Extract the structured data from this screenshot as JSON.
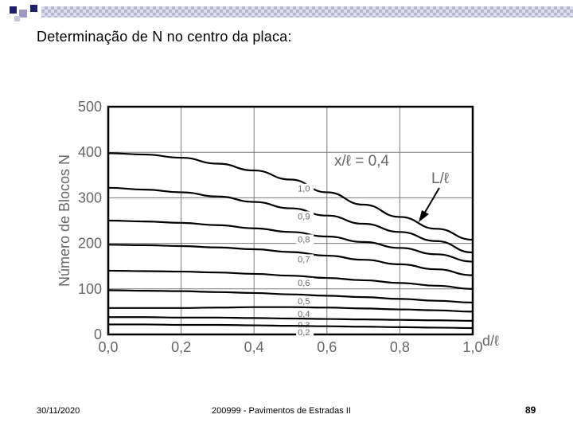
{
  "slide": {
    "title": "Determinação de N no centro da placa:",
    "footer_date": "30/11/2020",
    "footer_course": "200999 - Pavimentos de Estradas II",
    "page_number": "89"
  },
  "colors": {
    "deco_dark": "#1f1f6e",
    "deco_mid": "#9a9ac4",
    "deco_light": "#e4e4ef",
    "ink": "#000000",
    "grid": "#7a7a7a",
    "tick_text": "#666666"
  },
  "chart_data": {
    "type": "line",
    "ylabel": "Número de Blocos N",
    "xlabel": "d/ℓ",
    "xlim": [
      0,
      1.0
    ],
    "ylim": [
      0,
      500
    ],
    "x_ticks": [
      "0,0",
      "0,2",
      "0,4",
      "0,6",
      "0,8",
      "1,0"
    ],
    "y_ticks": [
      "0",
      "100",
      "200",
      "300",
      "400",
      "500"
    ],
    "grid": true,
    "annotations": {
      "family": "x/ℓ = 0,4",
      "arrow": "L/ℓ"
    },
    "x": [
      0,
      0.1,
      0.2,
      0.3,
      0.4,
      0.5,
      0.6,
      0.7,
      0.8,
      0.9,
      1.0
    ],
    "series": [
      {
        "name": "1,0",
        "values": [
          398,
          395,
          388,
          375,
          360,
          340,
          312,
          285,
          258,
          232,
          208
        ]
      },
      {
        "name": "0,9",
        "values": [
          322,
          318,
          312,
          303,
          291,
          277,
          261,
          243,
          225,
          205,
          180
        ]
      },
      {
        "name": "0,8",
        "values": [
          250,
          248,
          245,
          240,
          233,
          225,
          215,
          203,
          190,
          176,
          160
        ]
      },
      {
        "name": "0,7",
        "values": [
          197,
          196,
          194,
          191,
          187,
          181,
          173,
          164,
          154,
          143,
          130
        ]
      },
      {
        "name": "0,6",
        "values": [
          140,
          139,
          138,
          136,
          133,
          129,
          124,
          119,
          113,
          107,
          100
        ]
      },
      {
        "name": "0,5",
        "values": [
          97,
          96,
          95,
          93,
          91,
          88,
          85,
          82,
          78,
          74,
          70
        ]
      },
      {
        "name": "0,4",
        "values": [
          58,
          58,
          58,
          59,
          60,
          60,
          59,
          57,
          55,
          53,
          50
        ]
      },
      {
        "name": "0,3",
        "values": [
          38,
          38,
          37,
          37,
          36,
          35,
          34,
          33,
          32,
          31,
          30
        ]
      },
      {
        "name": "0,2",
        "values": [
          22,
          22,
          21,
          21,
          20,
          19,
          18,
          17,
          16,
          15,
          14
        ]
      }
    ],
    "label_at_x": 0.52
  }
}
